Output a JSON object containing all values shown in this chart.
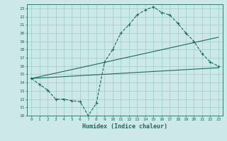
{
  "xlabel": "Humidex (Indice chaleur)",
  "bg_color": "#cce8e8",
  "grid_color": "#99cccc",
  "line_color": "#1a6b5a",
  "xlim": [
    -0.5,
    23.5
  ],
  "ylim": [
    10,
    23.5
  ],
  "xticks": [
    0,
    1,
    2,
    3,
    4,
    5,
    6,
    7,
    8,
    9,
    10,
    11,
    12,
    13,
    14,
    15,
    16,
    17,
    18,
    19,
    20,
    21,
    22,
    23
  ],
  "yticks": [
    10,
    11,
    12,
    13,
    14,
    15,
    16,
    17,
    18,
    19,
    20,
    21,
    22,
    23
  ],
  "series1_x": [
    0,
    1,
    2,
    3,
    4,
    5,
    6,
    7,
    8,
    9,
    10,
    11,
    12,
    13,
    14,
    15,
    16,
    17,
    18,
    19,
    20,
    21,
    22,
    23
  ],
  "series1_y": [
    14.5,
    13.8,
    13.1,
    12.0,
    12.0,
    11.8,
    11.7,
    10.0,
    11.5,
    16.5,
    18.0,
    20.0,
    21.0,
    22.2,
    22.8,
    23.2,
    22.5,
    22.2,
    21.2,
    20.0,
    19.0,
    17.5,
    16.5,
    16.0
  ],
  "series2_x": [
    0,
    23
  ],
  "series2_y": [
    14.5,
    19.5
  ],
  "series3_x": [
    0,
    23
  ],
  "series3_y": [
    14.5,
    15.8
  ],
  "xlabel_fontsize": 6,
  "tick_fontsize": 4.5
}
